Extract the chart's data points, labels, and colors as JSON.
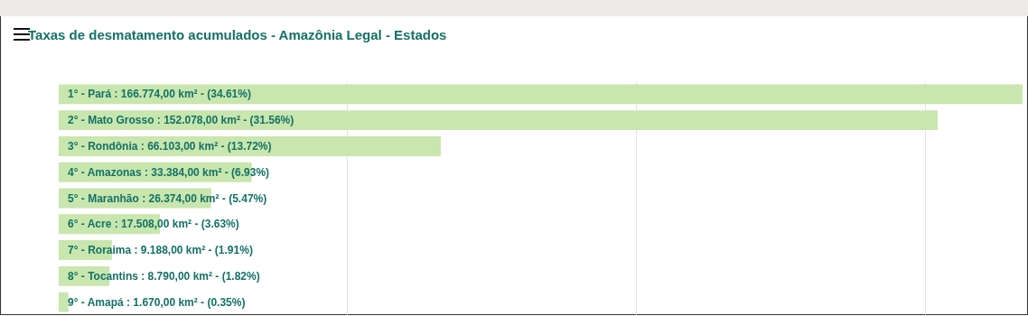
{
  "chart_data": {
    "type": "bar",
    "orientation": "horizontal",
    "title": "Taxas de desmatamento acumulados - Amazônia Legal - Estados",
    "categories": [
      null,
      null,
      null,
      null,
      null,
      null,
      null,
      null,
      null
    ],
    "values": [
      166774,
      152078,
      66103,
      33384,
      26374,
      17508,
      9188,
      8790,
      1670
    ],
    "value_labels": [
      "1° - Pará : 166.774,00 km² - (34.61%)",
      "2° - Mato Grosso : 152.078,00 km² - (31.56%)",
      "3° - Rondônia : 66.103,00 km² - (13.72%)",
      "4° - Amazonas : 33.384,00 km² - (6.93%)",
      "5° - Maranhão : 26.374,00 km² - (5.47%)",
      "6° - Acre : 17.508,00 km² - (3.63%)",
      "7° - Roraima : 9.188,00 km² - (1.91%)",
      "8° - Tocantins : 8.790,00 km² - (1.82%)",
      "9° - Amapá : 1.670,00 km² - (0.35%)"
    ],
    "color": "#c8e6ad",
    "xlim": [
      0,
      166774
    ],
    "grid": "x"
  }
}
